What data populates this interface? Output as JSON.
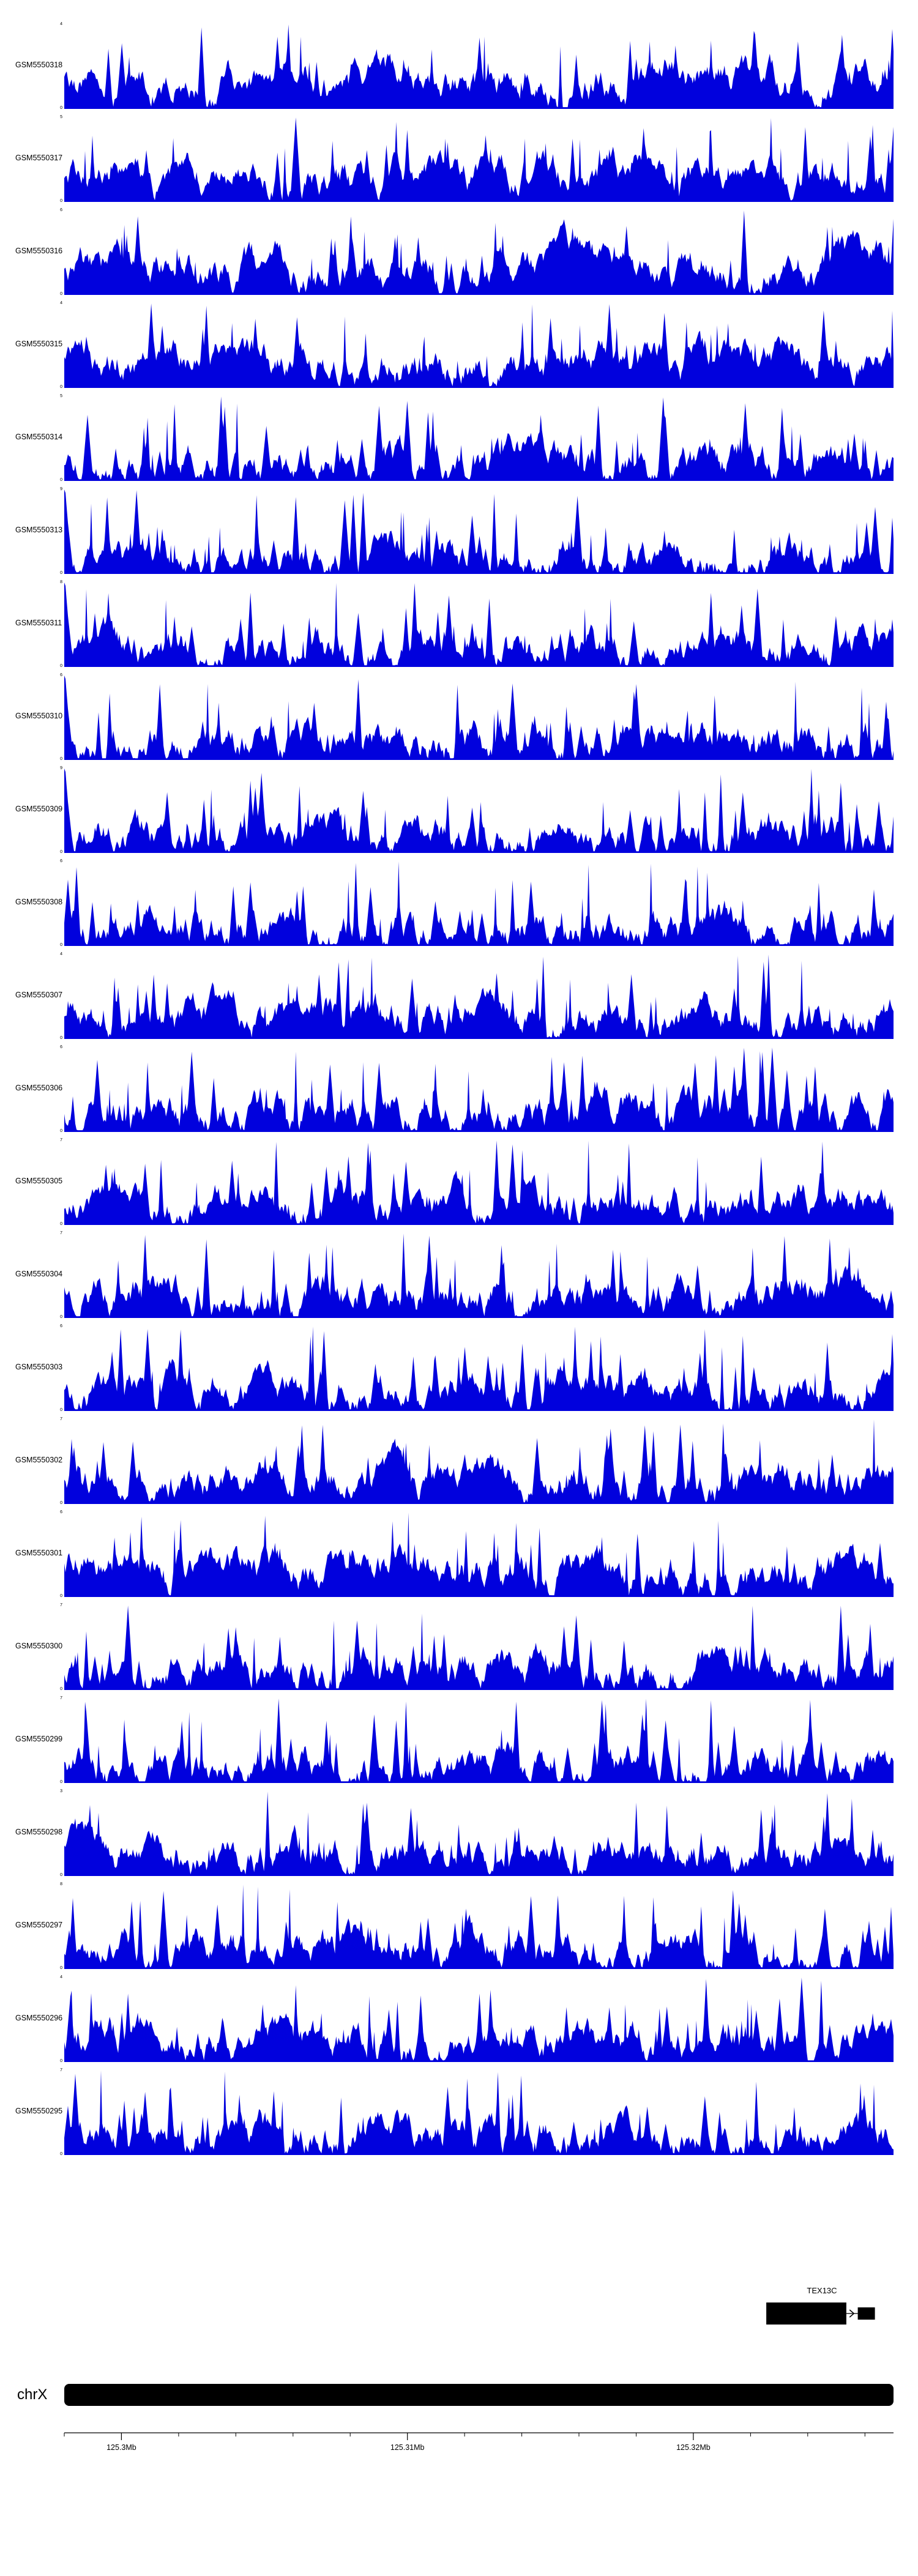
{
  "figure": {
    "background": "#ffffff"
  },
  "chart_data": {
    "type": "area",
    "description": "Genome browser coverage signal tracks over chrX with TEX13C gene model and genomic axis",
    "signal_color": "#0101dd",
    "axis": {
      "unit": "Mb",
      "range_kb": [
        0,
        29
      ],
      "major_ticks": [
        {
          "label": "125.3Mb",
          "kb": 2
        },
        {
          "label": "125.31Mb",
          "kb": 12
        },
        {
          "label": "125.32Mb",
          "kb": 22
        }
      ],
      "minor_tick_interval_kb": 2
    },
    "chromosome": {
      "name": "chrX"
    },
    "gene_track": {
      "gene": "TEX13C",
      "strand": ">",
      "exons_kb": [
        [
          24.55,
          27.35
        ],
        [
          27.75,
          28.35
        ]
      ]
    },
    "tracks": [
      {
        "label": "GSM5550318",
        "ymin": 0,
        "ymax": 4,
        "seed": 318,
        "density": 0.5,
        "left_peak": false
      },
      {
        "label": "GSM5550317",
        "ymin": 0,
        "ymax": 5,
        "seed": 317,
        "density": 0.5,
        "left_peak": false
      },
      {
        "label": "GSM5550316",
        "ymin": 0,
        "ymax": 6,
        "seed": 316,
        "density": 0.48,
        "left_peak": false
      },
      {
        "label": "GSM5550315",
        "ymin": 0,
        "ymax": 4,
        "seed": 315,
        "density": 0.5,
        "left_peak": false
      },
      {
        "label": "GSM5550314",
        "ymin": 0,
        "ymax": 5,
        "seed": 314,
        "density": 0.22,
        "left_peak": false
      },
      {
        "label": "GSM5550313",
        "ymin": 0,
        "ymax": 9,
        "seed": 313,
        "density": 0.2,
        "left_peak": true
      },
      {
        "label": "GSM5550311",
        "ymin": 0,
        "ymax": 8,
        "seed": 311,
        "density": 0.24,
        "left_peak": true
      },
      {
        "label": "GSM5550310",
        "ymin": 0,
        "ymax": 6,
        "seed": 310,
        "density": 0.3,
        "left_peak": true
      },
      {
        "label": "GSM5550309",
        "ymin": 0,
        "ymax": 9,
        "seed": 309,
        "density": 0.28,
        "left_peak": true
      },
      {
        "label": "GSM5550308",
        "ymin": 0,
        "ymax": 6,
        "seed": 308,
        "density": 0.3,
        "left_peak": false
      },
      {
        "label": "GSM5550307",
        "ymin": 0,
        "ymax": 4,
        "seed": 307,
        "density": 0.45,
        "left_peak": false
      },
      {
        "label": "GSM5550306",
        "ymin": 0,
        "ymax": 6,
        "seed": 306,
        "density": 0.35,
        "left_peak": false
      },
      {
        "label": "GSM5550305",
        "ymin": 0,
        "ymax": 7,
        "seed": 305,
        "density": 0.4,
        "left_peak": false
      },
      {
        "label": "GSM5550304",
        "ymin": 0,
        "ymax": 7,
        "seed": 304,
        "density": 0.45,
        "left_peak": false
      },
      {
        "label": "GSM5550303",
        "ymin": 0,
        "ymax": 6,
        "seed": 303,
        "density": 0.4,
        "left_peak": false
      },
      {
        "label": "GSM5550302",
        "ymin": 0,
        "ymax": 7,
        "seed": 302,
        "density": 0.45,
        "left_peak": false
      },
      {
        "label": "GSM5550301",
        "ymin": 0,
        "ymax": 6,
        "seed": 301,
        "density": 0.5,
        "left_peak": false
      },
      {
        "label": "GSM5550300",
        "ymin": 0,
        "ymax": 7,
        "seed": 300,
        "density": 0.35,
        "left_peak": false
      },
      {
        "label": "GSM5550299",
        "ymin": 0,
        "ymax": 7,
        "seed": 299,
        "density": 0.3,
        "left_peak": false
      },
      {
        "label": "GSM5550298",
        "ymin": 0,
        "ymax": 3,
        "seed": 298,
        "density": 0.45,
        "left_peak": false
      },
      {
        "label": "GSM5550297",
        "ymin": 0,
        "ymax": 8,
        "seed": 297,
        "density": 0.3,
        "left_peak": false
      },
      {
        "label": "GSM5550296",
        "ymin": 0,
        "ymax": 4,
        "seed": 296,
        "density": 0.35,
        "left_peak": false
      },
      {
        "label": "GSM5550295",
        "ymin": 0,
        "ymax": 7,
        "seed": 295,
        "density": 0.35,
        "left_peak": false
      }
    ]
  }
}
